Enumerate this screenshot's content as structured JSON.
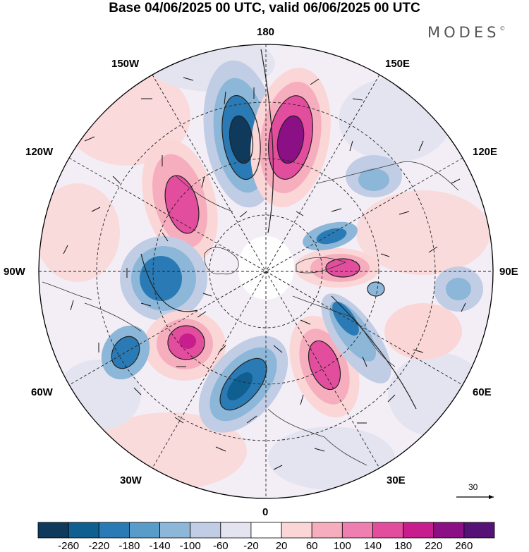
{
  "title": "Base 04/06/2025 00 UTC, valid 06/06/2025 00 UTC",
  "brand": "MODES",
  "brand_mark": "©",
  "longitude_labels": {
    "top": "180",
    "bottom": "0",
    "left": "90W",
    "right": "90E",
    "upper_left_outer": "150W",
    "upper_left_inner": "120W",
    "upper_right_outer": "150E",
    "upper_right_inner": "120E",
    "lower_left_inner": "60W",
    "lower_left_outer": "30W",
    "lower_right_inner": "60E",
    "lower_right_outer": "30E"
  },
  "reference_vector": {
    "label": "30"
  },
  "colorbar": {
    "ticks": [
      "-260",
      "-220",
      "-180",
      "-140",
      "-100",
      "-60",
      "-20",
      "20",
      "60",
      "100",
      "140",
      "180",
      "220",
      "260"
    ],
    "colors": [
      "#0f3a5c",
      "#0f5f91",
      "#2a7bb5",
      "#5a9cc9",
      "#8cb7d8",
      "#c0cde4",
      "#e4e4f1",
      "#ffffff",
      "#fbd6d6",
      "#f6aebe",
      "#ef7fb1",
      "#e24d9e",
      "#c81d8c",
      "#8b0f85",
      "#561177"
    ]
  }
}
